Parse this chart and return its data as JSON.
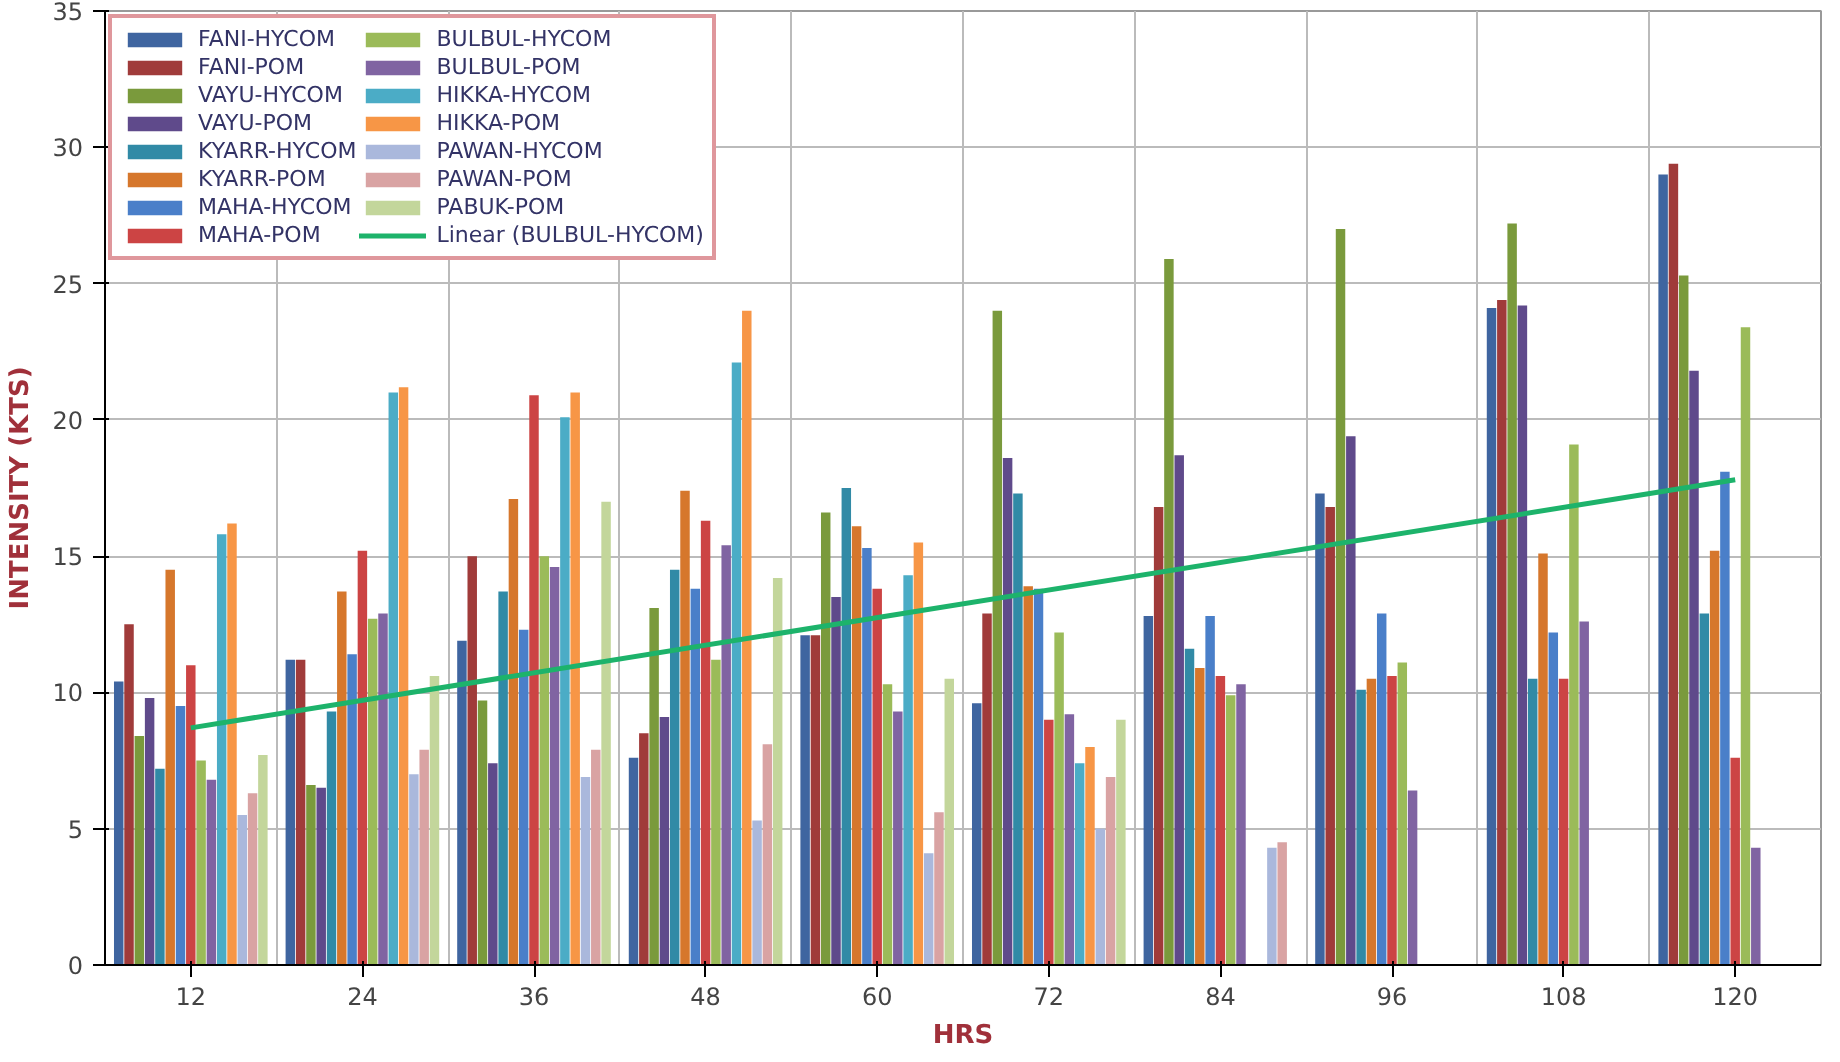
{
  "chart_data": {
    "type": "bar",
    "xlabel": "HRS",
    "ylabel": "INTENSITY (KTS)",
    "categories": [
      "12",
      "24",
      "36",
      "48",
      "60",
      "72",
      "84",
      "96",
      "108",
      "120"
    ],
    "ylim": [
      0,
      35
    ],
    "yticks": [
      0,
      5,
      10,
      15,
      20,
      25,
      30,
      35
    ],
    "grid": true,
    "legend": "top left",
    "series": [
      {
        "name": "FANI-HYCOM",
        "color": "#3f65a0",
        "values": [
          10.4,
          11.2,
          11.9,
          7.6,
          12.1,
          9.6,
          12.8,
          17.3,
          24.1,
          29.0
        ]
      },
      {
        "name": "FANI-POM",
        "color": "#a03b3a",
        "values": [
          12.5,
          11.2,
          15.0,
          8.5,
          12.1,
          12.9,
          16.8,
          16.8,
          24.4,
          29.4
        ]
      },
      {
        "name": "VAYU-HYCOM",
        "color": "#7a9a3c",
        "values": [
          8.4,
          6.6,
          9.7,
          13.1,
          16.6,
          24.0,
          25.9,
          27.0,
          27.2,
          25.3
        ]
      },
      {
        "name": "VAYU-POM",
        "color": "#5f4a8b",
        "values": [
          9.8,
          6.5,
          7.4,
          9.1,
          13.5,
          18.6,
          18.7,
          19.4,
          24.2,
          21.8
        ]
      },
      {
        "name": "KYARR-HYCOM",
        "color": "#318aa6",
        "values": [
          7.2,
          9.3,
          13.7,
          14.5,
          17.5,
          17.3,
          11.6,
          10.1,
          10.5,
          12.9
        ]
      },
      {
        "name": "KYARR-POM",
        "color": "#d6772c",
        "values": [
          14.5,
          13.7,
          17.1,
          17.4,
          16.1,
          13.9,
          10.9,
          10.5,
          15.1,
          15.2
        ]
      },
      {
        "name": "MAHA-HYCOM",
        "color": "#4a7fc9",
        "values": [
          9.5,
          11.4,
          12.3,
          13.8,
          15.3,
          13.8,
          12.8,
          12.9,
          12.2,
          18.1
        ]
      },
      {
        "name": "MAHA-POM",
        "color": "#cc4444",
        "values": [
          11.0,
          15.2,
          20.9,
          16.3,
          13.8,
          9.0,
          10.6,
          10.6,
          10.5,
          7.6
        ]
      },
      {
        "name": "BULBUL-HYCOM",
        "color": "#9bbb59",
        "values": [
          7.5,
          12.7,
          15.0,
          11.2,
          10.3,
          12.2,
          9.9,
          11.1,
          19.1,
          23.4
        ]
      },
      {
        "name": "BULBUL-POM",
        "color": "#8064a2",
        "values": [
          6.8,
          12.9,
          14.6,
          15.4,
          9.3,
          9.2,
          10.3,
          6.4,
          12.6,
          4.3
        ]
      },
      {
        "name": "HIKKA-HYCOM",
        "color": "#4bacc6",
        "values": [
          15.8,
          21.0,
          20.1,
          22.1,
          14.3,
          7.4,
          null,
          null,
          null,
          null
        ]
      },
      {
        "name": "HIKKA-POM",
        "color": "#f79646",
        "values": [
          16.2,
          21.2,
          21.0,
          24.0,
          15.5,
          8.0,
          null,
          null,
          null,
          null
        ]
      },
      {
        "name": "PAWAN-HYCOM",
        "color": "#aab8dc",
        "values": [
          5.5,
          7.0,
          6.9,
          5.3,
          4.1,
          5.0,
          4.3,
          null,
          null,
          null
        ]
      },
      {
        "name": "PAWAN-POM",
        "color": "#d9a3a3",
        "values": [
          6.3,
          7.9,
          7.9,
          8.1,
          5.6,
          6.9,
          4.5,
          null,
          null,
          null
        ]
      },
      {
        "name": "PABUK-POM",
        "color": "#c3d69b",
        "values": [
          7.7,
          10.6,
          17.0,
          14.2,
          10.5,
          9.0,
          null,
          null,
          null,
          null
        ]
      },
      {
        "name": "Linear (BULBUL-HYCOM)",
        "type": "line",
        "color": "#1db36b",
        "x": [
          "12",
          "120"
        ],
        "values": [
          8.7,
          17.8
        ]
      }
    ]
  }
}
